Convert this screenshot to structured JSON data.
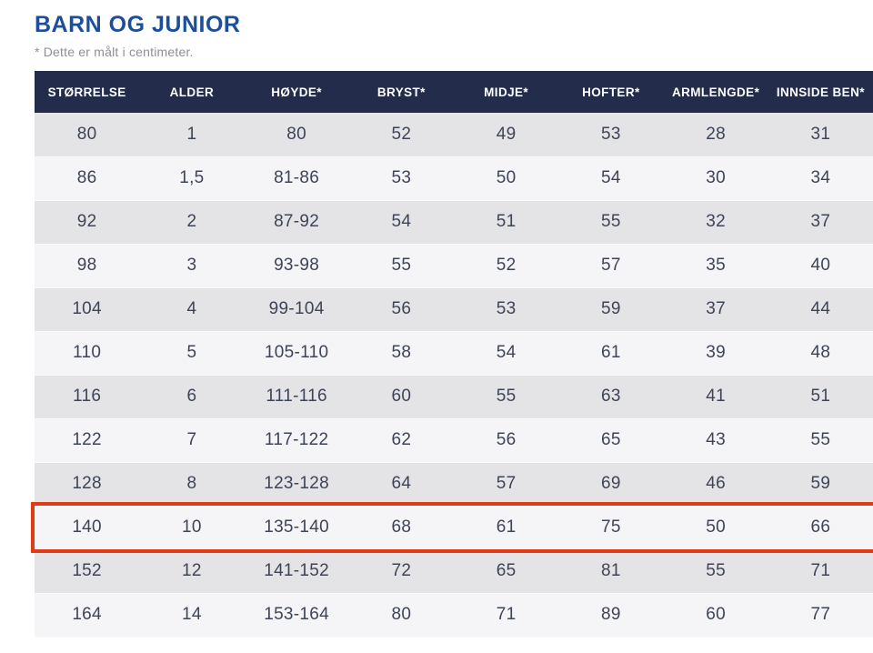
{
  "page": {
    "title": "BARN OG JUNIOR",
    "note": "* Dette er målt i centimeter."
  },
  "table": {
    "columns": [
      "STØRRELSE",
      "ALDER",
      "HØYDE*",
      "BRYST*",
      "MIDJE*",
      "HOFTER*",
      "ARMLENGDE*",
      "INNSIDE BEN*"
    ],
    "rows": [
      [
        "80",
        "1",
        "80",
        "52",
        "49",
        "53",
        "28",
        "31"
      ],
      [
        "86",
        "1,5",
        "81-86",
        "53",
        "50",
        "54",
        "30",
        "34"
      ],
      [
        "92",
        "2",
        "87-92",
        "54",
        "51",
        "55",
        "32",
        "37"
      ],
      [
        "98",
        "3",
        "93-98",
        "55",
        "52",
        "57",
        "35",
        "40"
      ],
      [
        "104",
        "4",
        "99-104",
        "56",
        "53",
        "59",
        "37",
        "44"
      ],
      [
        "110",
        "5",
        "105-110",
        "58",
        "54",
        "61",
        "39",
        "48"
      ],
      [
        "116",
        "6",
        "111-116",
        "60",
        "55",
        "63",
        "41",
        "51"
      ],
      [
        "122",
        "7",
        "117-122",
        "62",
        "56",
        "65",
        "43",
        "55"
      ],
      [
        "128",
        "8",
        "123-128",
        "64",
        "57",
        "69",
        "46",
        "59"
      ],
      [
        "140",
        "10",
        "135-140",
        "68",
        "61",
        "75",
        "50",
        "66"
      ],
      [
        "152",
        "12",
        "141-152",
        "72",
        "65",
        "81",
        "55",
        "71"
      ],
      [
        "164",
        "14",
        "153-164",
        "80",
        "71",
        "89",
        "60",
        "77"
      ]
    ],
    "highlighted_row_index": 9
  },
  "colors": {
    "title": "#1d4e9b",
    "header_bg": "#232d4b",
    "header_text": "#ffffff",
    "row_odd": "#e4e4e6",
    "row_even": "#f5f5f7",
    "cell_text": "#3e4457",
    "note_text": "#8e8e99",
    "highlight_border": "#e03a17"
  }
}
